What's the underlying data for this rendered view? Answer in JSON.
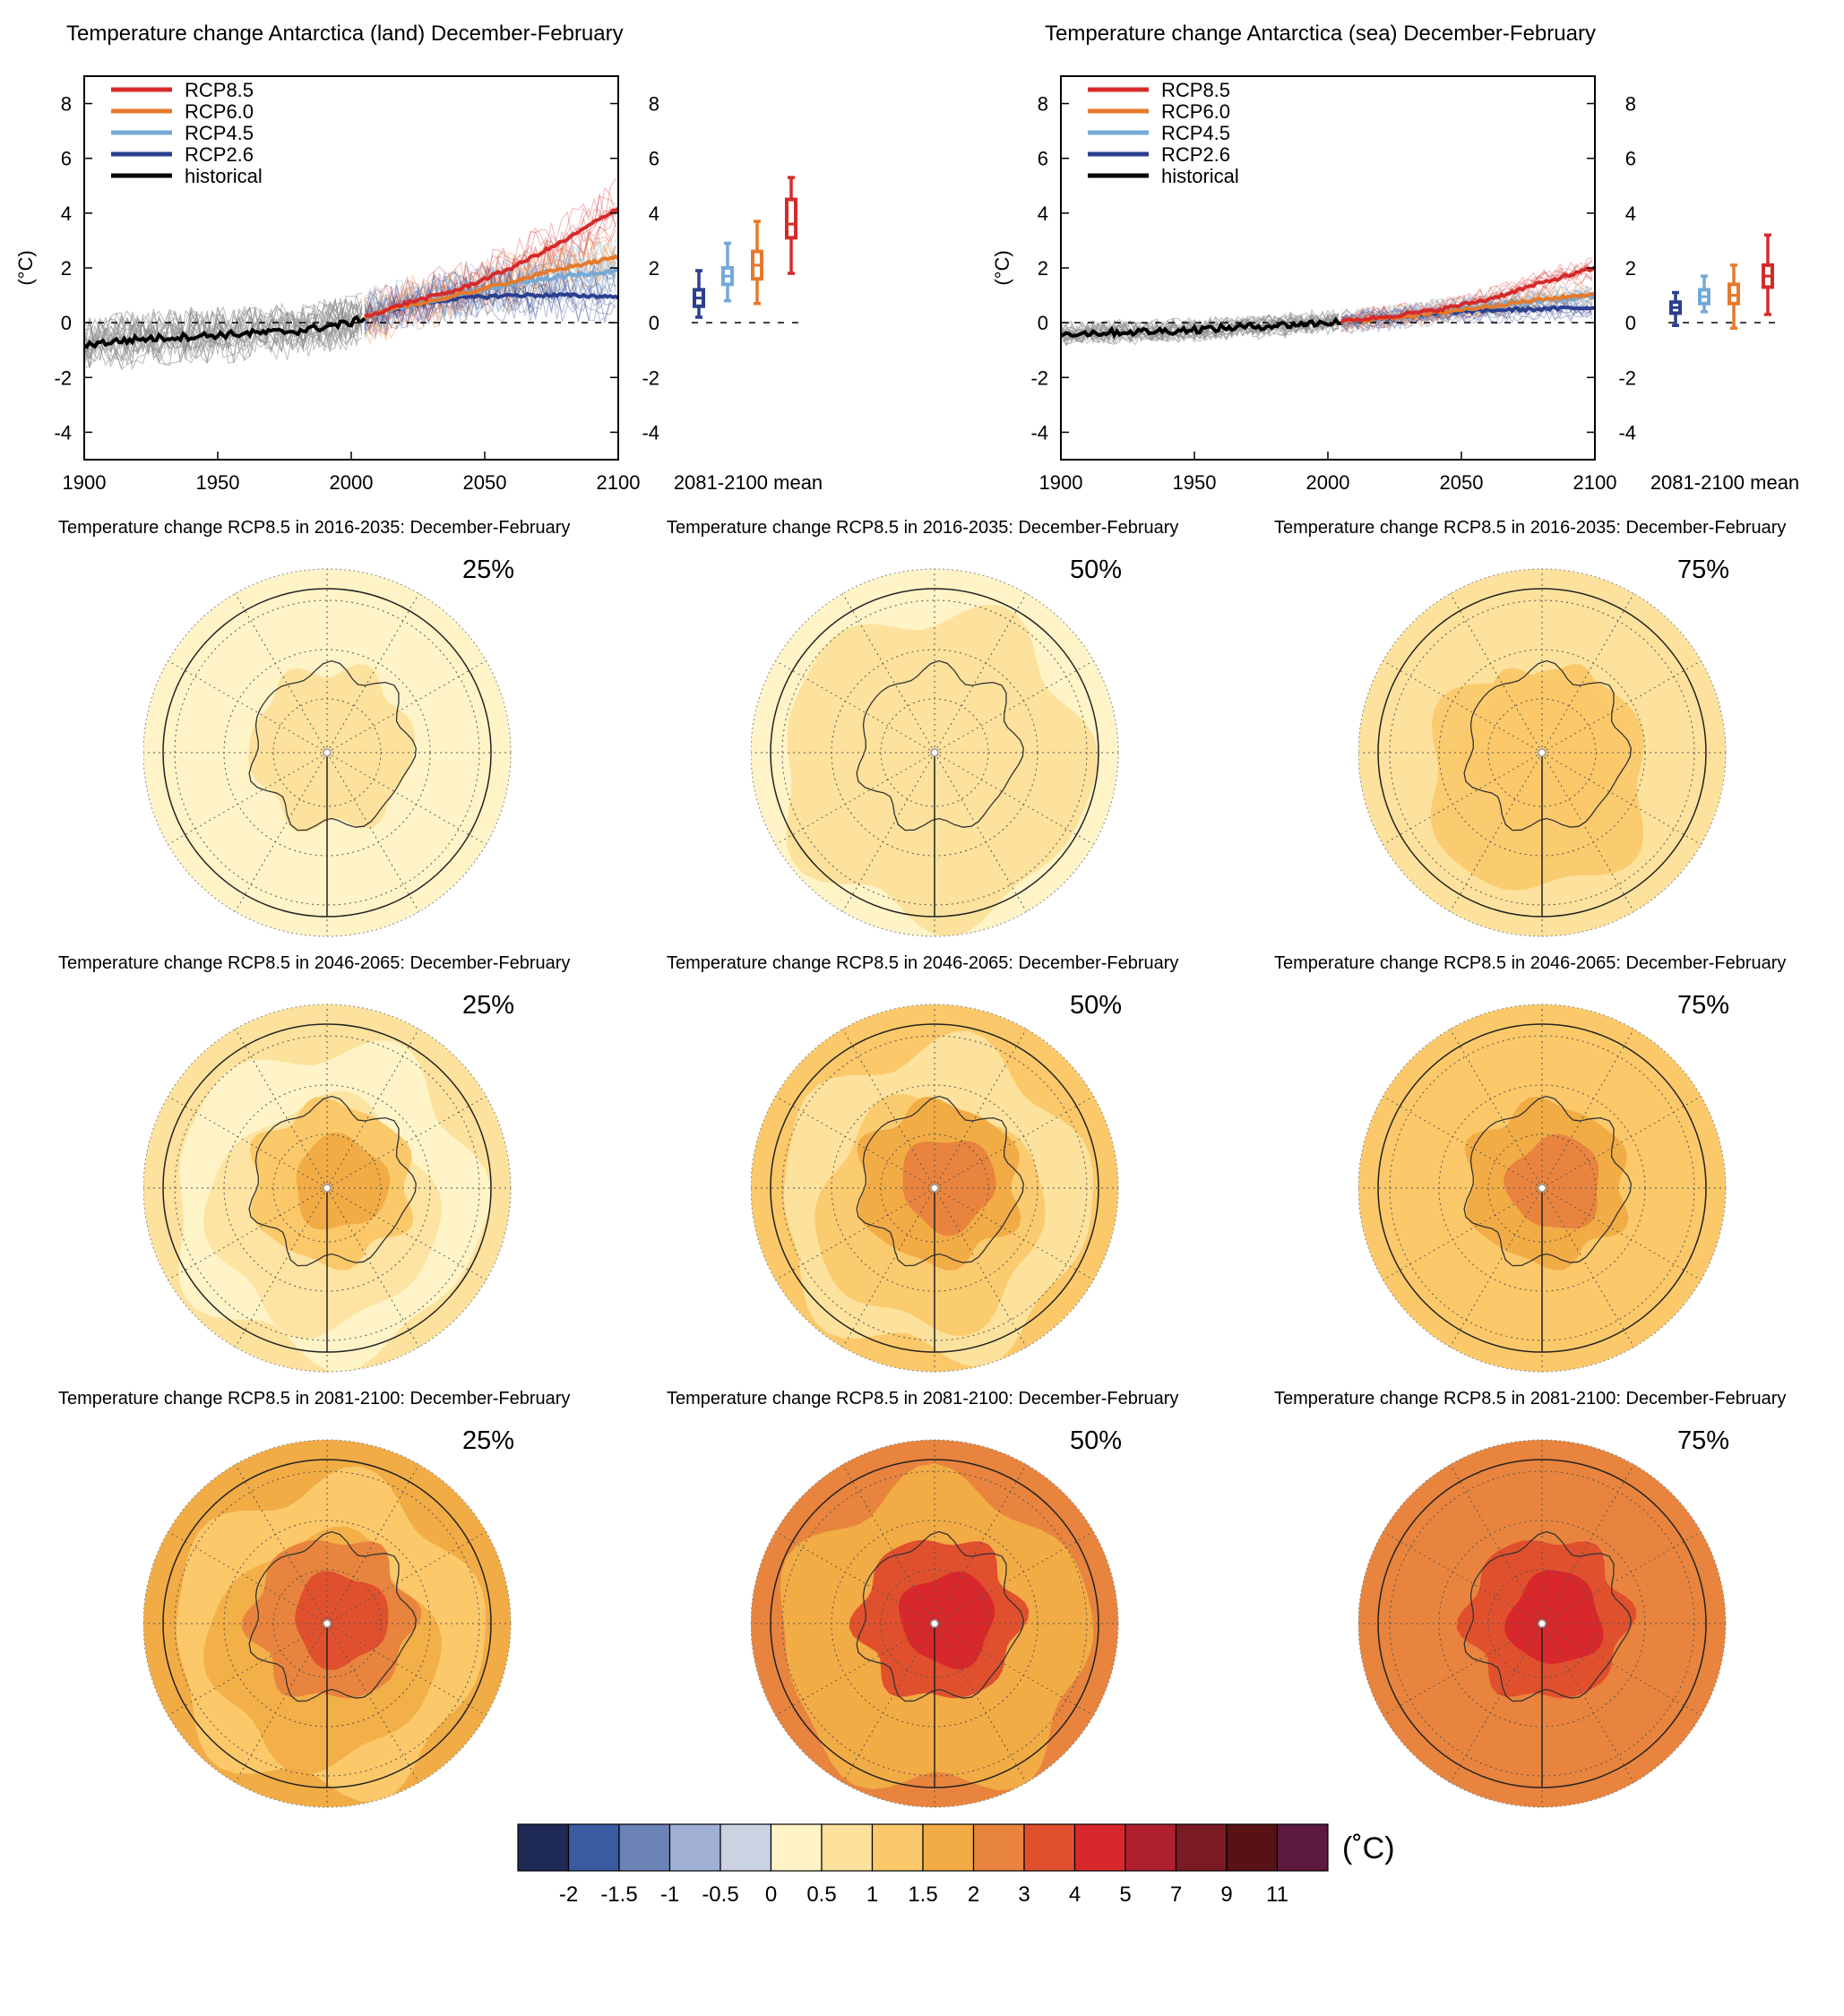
{
  "figure": {
    "colorbar": {
      "unit": "(˚C)",
      "colors": [
        "#1e2a55",
        "#3b5ba0",
        "#6c83b8",
        "#9fb0d4",
        "#cbd3e3",
        "#fff4c8",
        "#fde29d",
        "#fbc96a",
        "#f2ac45",
        "#e8843e",
        "#e0502d",
        "#d8282b",
        "#b01f2e",
        "#7a1a22",
        "#581215",
        "#5c1a3e"
      ],
      "tick_labels": [
        "-2",
        "-1.5",
        "-1",
        "-0.5",
        "0",
        "0.5",
        "1",
        "1.5",
        "2",
        "3",
        "4",
        "5",
        "7",
        "9",
        "11"
      ]
    },
    "maps": [
      {
        "row_title": "Temperature change RCP8.5 in 2016-2035: December-February",
        "panels": [
          {
            "pct": "25%",
            "level": 0
          },
          {
            "pct": "50%",
            "level": 1
          },
          {
            "pct": "75%",
            "level": 2
          }
        ]
      },
      {
        "row_title": "Temperature change RCP8.5 in 2046-2065: December-February",
        "panels": [
          {
            "pct": "25%",
            "level": 3
          },
          {
            "pct": "50%",
            "level": 4
          },
          {
            "pct": "75%",
            "level": 5
          }
        ]
      },
      {
        "row_title": "Temperature change RCP8.5 in 2081-2100: December-February",
        "panels": [
          {
            "pct": "25%",
            "level": 6
          },
          {
            "pct": "50%",
            "level": 7
          },
          {
            "pct": "75%",
            "level": 8
          }
        ]
      }
    ]
  },
  "chart_data": [
    {
      "type": "line",
      "title": "Temperature change Antarctica (land) December-February",
      "ylabel": "(°C)",
      "xlim": [
        1900,
        2100
      ],
      "ylim": [
        -5,
        9
      ],
      "xticks": [
        "1900",
        "1950",
        "2000",
        "2050",
        "2100"
      ],
      "yticks": [
        "-4",
        "-2",
        "0",
        "2",
        "4",
        "6",
        "8"
      ],
      "right_label": "2081-2100 mean",
      "legend": [
        {
          "name": "RCP8.5",
          "color": "#d62a2a"
        },
        {
          "name": "RCP6.0",
          "color": "#e57a2b"
        },
        {
          "name": "RCP4.5",
          "color": "#74a9d6"
        },
        {
          "name": "RCP2.6",
          "color": "#2b3f8f"
        },
        {
          "name": "historical",
          "color": "#000000"
        }
      ],
      "series": [
        {
          "name": "historical",
          "x": [
            1900,
            1920,
            1940,
            1960,
            1980,
            2000,
            2005
          ],
          "y": [
            -0.8,
            -0.6,
            -0.5,
            -0.4,
            -0.3,
            0.0,
            0.2
          ]
        },
        {
          "name": "RCP8.5",
          "x": [
            2005,
            2020,
            2040,
            2060,
            2080,
            2100
          ],
          "y": [
            0.2,
            0.7,
            1.2,
            2.0,
            3.0,
            4.2
          ]
        },
        {
          "name": "RCP6.0",
          "x": [
            2005,
            2020,
            2040,
            2060,
            2080,
            2100
          ],
          "y": [
            0.2,
            0.6,
            1.0,
            1.5,
            2.0,
            2.4
          ]
        },
        {
          "name": "RCP4.5",
          "x": [
            2005,
            2020,
            2040,
            2060,
            2080,
            2100
          ],
          "y": [
            0.2,
            0.6,
            1.0,
            1.4,
            1.7,
            1.9
          ]
        },
        {
          "name": "RCP2.6",
          "x": [
            2005,
            2020,
            2040,
            2060,
            2080,
            2100
          ],
          "y": [
            0.2,
            0.6,
            0.9,
            1.0,
            1.0,
            0.95
          ]
        }
      ],
      "boxes": [
        {
          "name": "RCP2.6",
          "color": "#2b3f8f",
          "min": 0.2,
          "q1": 0.6,
          "median": 0.9,
          "q3": 1.2,
          "max": 1.9
        },
        {
          "name": "RCP4.5",
          "color": "#74a9d6",
          "min": 0.8,
          "q1": 1.4,
          "median": 1.7,
          "q3": 2.0,
          "max": 2.9
        },
        {
          "name": "RCP6.0",
          "color": "#e57a2b",
          "min": 0.7,
          "q1": 1.6,
          "median": 2.1,
          "q3": 2.6,
          "max": 3.7
        },
        {
          "name": "RCP8.5",
          "color": "#d62a2a",
          "min": 1.8,
          "q1": 3.1,
          "median": 3.6,
          "q3": 4.5,
          "max": 5.3
        }
      ]
    },
    {
      "type": "line",
      "title": "Temperature change Antarctica (sea) December-February",
      "ylabel": "(°C)",
      "xlim": [
        1900,
        2100
      ],
      "ylim": [
        -5,
        9
      ],
      "xticks": [
        "1900",
        "1950",
        "2000",
        "2050",
        "2100"
      ],
      "yticks": [
        "-4",
        "-2",
        "0",
        "2",
        "4",
        "6",
        "8"
      ],
      "right_label": "2081-2100 mean",
      "legend": [
        {
          "name": "RCP8.5",
          "color": "#d62a2a"
        },
        {
          "name": "RCP6.0",
          "color": "#e57a2b"
        },
        {
          "name": "RCP4.5",
          "color": "#74a9d6"
        },
        {
          "name": "RCP2.6",
          "color": "#2b3f8f"
        },
        {
          "name": "historical",
          "color": "#000000"
        }
      ],
      "series": [
        {
          "name": "historical",
          "x": [
            1900,
            1920,
            1940,
            1960,
            1980,
            2000,
            2005
          ],
          "y": [
            -0.4,
            -0.35,
            -0.3,
            -0.2,
            -0.1,
            0.0,
            0.05
          ]
        },
        {
          "name": "RCP8.5",
          "x": [
            2005,
            2020,
            2040,
            2060,
            2080,
            2100
          ],
          "y": [
            0.05,
            0.2,
            0.45,
            0.85,
            1.45,
            2.0
          ]
        },
        {
          "name": "RCP6.0",
          "x": [
            2005,
            2020,
            2040,
            2060,
            2080,
            2100
          ],
          "y": [
            0.05,
            0.15,
            0.35,
            0.6,
            0.85,
            1.05
          ]
        },
        {
          "name": "RCP4.5",
          "x": [
            2005,
            2020,
            2040,
            2060,
            2080,
            2100
          ],
          "y": [
            0.05,
            0.15,
            0.4,
            0.6,
            0.8,
            0.95
          ]
        },
        {
          "name": "RCP2.6",
          "x": [
            2005,
            2020,
            2040,
            2060,
            2080,
            2100
          ],
          "y": [
            0.05,
            0.15,
            0.35,
            0.45,
            0.5,
            0.55
          ]
        }
      ],
      "boxes": [
        {
          "name": "RCP2.6",
          "color": "#2b3f8f",
          "min": -0.1,
          "q1": 0.35,
          "median": 0.55,
          "q3": 0.75,
          "max": 1.1
        },
        {
          "name": "RCP4.5",
          "color": "#74a9d6",
          "min": 0.4,
          "q1": 0.7,
          "median": 0.95,
          "q3": 1.2,
          "max": 1.7
        },
        {
          "name": "RCP6.0",
          "color": "#e57a2b",
          "min": -0.2,
          "q1": 0.7,
          "median": 1.0,
          "q3": 1.4,
          "max": 2.1
        },
        {
          "name": "RCP8.5",
          "color": "#d62a2a",
          "min": 0.3,
          "q1": 1.3,
          "median": 1.7,
          "q3": 2.1,
          "max": 3.2
        }
      ]
    }
  ]
}
